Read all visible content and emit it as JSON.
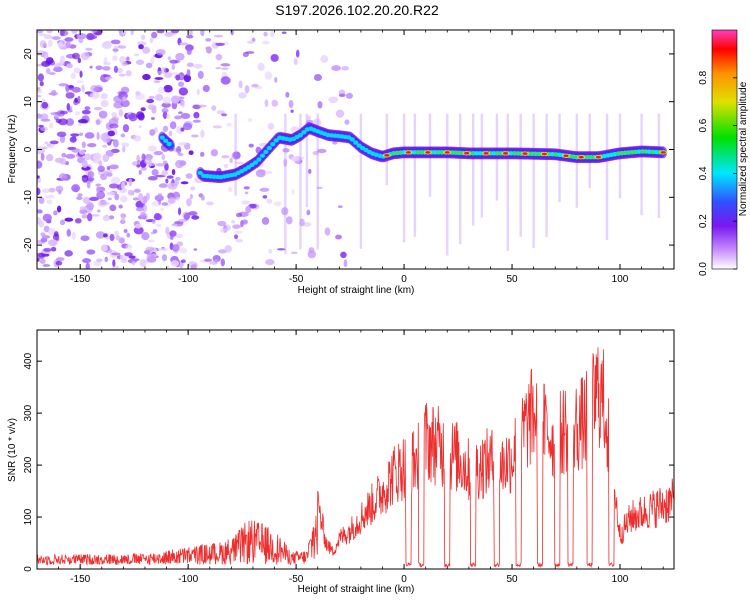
{
  "figure_title": "S197.2026.102.20.20.R22",
  "colors": {
    "snr_line": "#ee2d2d",
    "ridge": "#e02020",
    "colormap": [
      "#ffffff",
      "#c88cff",
      "#7a18f0",
      "#3050ff",
      "#00e6ff",
      "#00e000",
      "#e0e000",
      "#ff9000",
      "#ff0000",
      "#ff40c0"
    ]
  },
  "chart_data": [
    {
      "type": "heatmap",
      "title": "S197.2026.102.20.20.R22",
      "xlabel": "Height of straight line (km)",
      "ylabel": "Frequency (Hz)",
      "xlim": [
        -170,
        125
      ],
      "ylim": [
        -25,
        25
      ],
      "xticks": [
        -150,
        -100,
        -50,
        0,
        50,
        100
      ],
      "yticks": [
        -20,
        -10,
        0,
        10,
        20
      ],
      "colorbar": {
        "label": "Normalized spectral amplitude",
        "range": [
          0,
          1
        ],
        "ticks": [
          0.0,
          0.2,
          0.4,
          0.6,
          0.8
        ]
      },
      "ridge": {
        "x": [
          -112,
          -93,
          -85,
          -78,
          -73,
          -68,
          -65,
          -61,
          -58,
          -52,
          -48,
          -44,
          -40,
          -35,
          -30,
          -25,
          -20,
          -15,
          -10,
          -5,
          0,
          10,
          20,
          30,
          40,
          50,
          60,
          70,
          80,
          90,
          100,
          110,
          120
        ],
        "y": [
          2.5,
          -5.5,
          -5.8,
          -5.2,
          -4.0,
          -2.5,
          -1.0,
          1.0,
          2.5,
          2.0,
          3.0,
          4.5,
          3.8,
          3.0,
          2.8,
          2.5,
          0.5,
          -0.8,
          -1.5,
          -0.8,
          -0.6,
          -0.6,
          -0.6,
          -0.8,
          -0.8,
          -0.8,
          -0.9,
          -1.0,
          -1.6,
          -1.6,
          -0.8,
          -0.4,
          -0.6
        ]
      },
      "noise_region": [
        -170,
        -25
      ]
    },
    {
      "type": "line",
      "xlabel": "Height of straight line (km)",
      "ylabel": "SNR (10 * v/v)",
      "xlim": [
        -170,
        125
      ],
      "ylim": [
        0,
        460
      ],
      "xticks": [
        -150,
        -100,
        -50,
        0,
        50,
        100
      ],
      "yticks": [
        0,
        100,
        200,
        300,
        400
      ],
      "series": [
        {
          "name": "SNR",
          "envelope_x": [
            -170,
            -120,
            -105,
            -85,
            -78,
            -72,
            -65,
            -58,
            -52,
            -45,
            -40,
            -36,
            -33,
            -30,
            -25,
            -20,
            -15,
            -10,
            -5,
            0,
            5,
            10,
            15,
            20,
            25,
            30,
            35,
            40,
            45,
            50,
            55,
            60,
            65,
            70,
            75,
            80,
            85,
            90,
            93,
            97,
            100,
            105,
            110,
            115,
            120,
            125
          ],
          "envelope_y": [
            20,
            22,
            32,
            45,
            60,
            90,
            80,
            60,
            25,
            30,
            150,
            60,
            40,
            70,
            90,
            120,
            150,
            180,
            220,
            240,
            250,
            300,
            290,
            270,
            260,
            230,
            240,
            250,
            240,
            260,
            320,
            360,
            330,
            300,
            330,
            330,
            350,
            420,
            380,
            200,
            80,
            120,
            130,
            140,
            150,
            160
          ],
          "dropout_centers": [
            2,
            8,
            20,
            32,
            43,
            53,
            63,
            71,
            77,
            86,
            96
          ],
          "dropout_width": 2.5
        }
      ]
    }
  ]
}
